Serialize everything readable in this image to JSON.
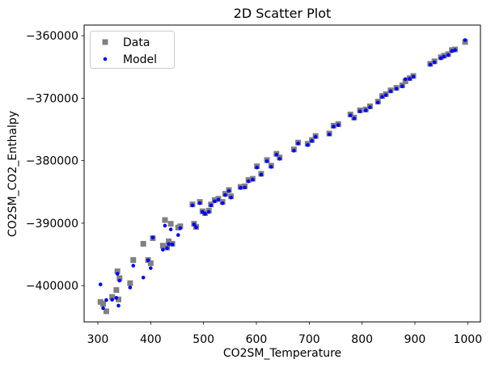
{
  "figure": {
    "title": "2D Scatter Plot",
    "xlabel": "CO2SM_Temperature",
    "ylabel": "CO2SM_CO2_Enthalpy"
  },
  "legend": {
    "position": "upper left",
    "items": [
      {
        "label": "Data",
        "marker": "square",
        "color": "#808080"
      },
      {
        "label": "Model",
        "marker": "circle",
        "color": "#0000ff"
      }
    ]
  },
  "chart_data": {
    "type": "scatter",
    "title": "2D Scatter Plot",
    "xlabel": "CO2SM_Temperature",
    "ylabel": "CO2SM_CO2_Enthalpy",
    "grid": false,
    "legend_position": "upper left",
    "xlim": [
      274,
      1024
    ],
    "ylim": [
      -405800,
      -358300
    ],
    "xticks": [
      {
        "value": 300,
        "label": "300"
      },
      {
        "value": 400,
        "label": "400"
      },
      {
        "value": 500,
        "label": "500"
      },
      {
        "value": 600,
        "label": "600"
      },
      {
        "value": 700,
        "label": "700"
      },
      {
        "value": 800,
        "label": "800"
      },
      {
        "value": 900,
        "label": "900"
      },
      {
        "value": 1000,
        "label": "1000"
      }
    ],
    "yticks": [
      {
        "value": -360000,
        "label": "−360000"
      },
      {
        "value": -370000,
        "label": "−370000"
      },
      {
        "value": -380000,
        "label": "−380000"
      },
      {
        "value": -390000,
        "label": "−390000"
      },
      {
        "value": -400000,
        "label": "−400000"
      }
    ],
    "x_shared": [
      305,
      310,
      316,
      327,
      335,
      337,
      339,
      341,
      361,
      367,
      386,
      395,
      400,
      404,
      423,
      427,
      431,
      434,
      438,
      441,
      452,
      456,
      479,
      482,
      486,
      493,
      498,
      503,
      510,
      514,
      521,
      528,
      536,
      541,
      548,
      552,
      570,
      578,
      585,
      593,
      601,
      609,
      620,
      628,
      638,
      644,
      671,
      679,
      697,
      705,
      712,
      738,
      746,
      755,
      778,
      785,
      796,
      807,
      815,
      830,
      838,
      845,
      854,
      865,
      876,
      882,
      890,
      897,
      929,
      937,
      949,
      955,
      963,
      970,
      976,
      995
    ],
    "series": [
      {
        "name": "Data",
        "marker": "square",
        "color": "#808080",
        "marker_size_px": 7,
        "y": [
          -402600,
          -402900,
          -404100,
          -401800,
          -400700,
          -397700,
          -402200,
          -398800,
          -399600,
          -395900,
          -393300,
          -395900,
          -396400,
          -392400,
          -393600,
          -389500,
          -393900,
          -392900,
          -390100,
          -393300,
          -390700,
          -390500,
          -387000,
          -390100,
          -390600,
          -386600,
          -388100,
          -388400,
          -388000,
          -387000,
          -386300,
          -386100,
          -386600,
          -385300,
          -384700,
          -385700,
          -384200,
          -384100,
          -383100,
          -382900,
          -380900,
          -382100,
          -379900,
          -380800,
          -378900,
          -379500,
          -378200,
          -377100,
          -377300,
          -376700,
          -376050,
          -375650,
          -374400,
          -374150,
          -372600,
          -373100,
          -371950,
          -371800,
          -371300,
          -370550,
          -369650,
          -369350,
          -368750,
          -368350,
          -367950,
          -367300,
          -366800,
          -366450,
          -364500,
          -364100,
          -363450,
          -363200,
          -362950,
          -362300,
          -362200,
          -361000
        ]
      },
      {
        "name": "Model",
        "marker": "circle",
        "color": "#0000ff",
        "marker_size_px": 4.6,
        "y": [
          -399800,
          -403600,
          -402300,
          -402250,
          -401950,
          -398100,
          -403200,
          -399200,
          -400300,
          -396800,
          -398700,
          -395950,
          -397200,
          -392300,
          -394250,
          -390400,
          -394000,
          -393350,
          -391000,
          -393400,
          -391900,
          -390800,
          -387150,
          -390200,
          -390650,
          -386800,
          -388200,
          -388500,
          -388200,
          -387150,
          -386500,
          -386250,
          -386800,
          -385500,
          -384850,
          -385900,
          -384350,
          -384300,
          -383300,
          -383050,
          -381100,
          -382250,
          -380100,
          -381000,
          -379050,
          -379700,
          -378400,
          -377250,
          -377500,
          -376850,
          -376200,
          -375800,
          -374550,
          -374300,
          -372750,
          -373250,
          -372100,
          -371950,
          -371450,
          -370700,
          -369800,
          -369500,
          -368900,
          -368500,
          -368100,
          -366950,
          -366900,
          -366550,
          -364650,
          -364250,
          -363600,
          -363350,
          -363100,
          -362450,
          -362300,
          -360700
        ]
      }
    ]
  }
}
